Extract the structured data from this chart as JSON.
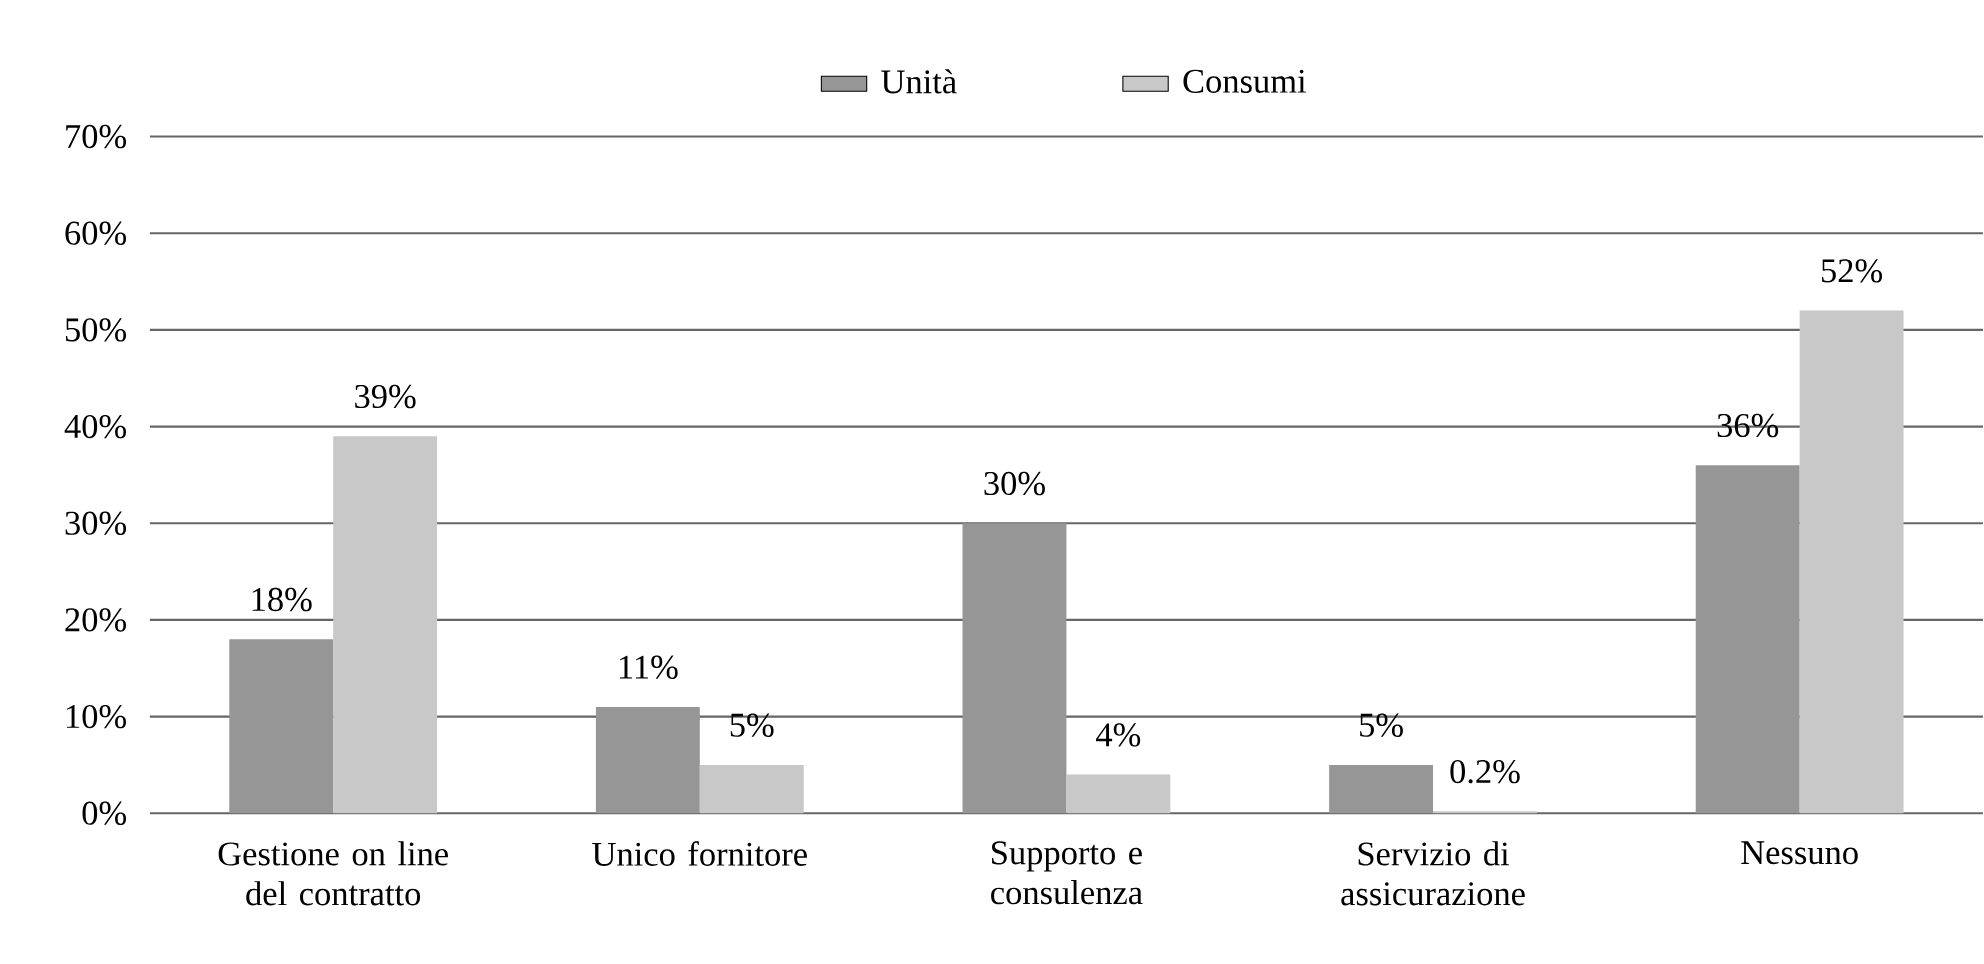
{
  "chart_data": {
    "type": "bar",
    "categories": [
      "Gestione on line del contratto",
      "Unico fornitore",
      "Supporto e consulenza",
      "Servizio di assicurazione",
      "Nessuno"
    ],
    "series": [
      {
        "name": "Unità",
        "color": "#969696",
        "values": [
          18,
          11,
          30,
          5,
          36
        ],
        "value_labels": [
          "18%",
          "11%",
          "30%",
          "5%",
          "36%"
        ]
      },
      {
        "name": "Consumi",
        "color": "#c8c8c8",
        "values": [
          39,
          5,
          4,
          0.2,
          52
        ],
        "value_labels": [
          "39%",
          "5%",
          "4%",
          "0.2%",
          "52%"
        ]
      }
    ],
    "ylim": [
      0,
      70
    ],
    "yticks": [
      {
        "value": 0,
        "label": "0%"
      },
      {
        "value": 10,
        "label": "10%"
      },
      {
        "value": 20,
        "label": "20%"
      },
      {
        "value": 30,
        "label": "30%"
      },
      {
        "value": 40,
        "label": "40%"
      },
      {
        "value": 50,
        "label": "50%"
      },
      {
        "value": 60,
        "label": "60%"
      },
      {
        "value": 70,
        "label": "70%"
      }
    ],
    "grid": "y",
    "legend": "top"
  }
}
